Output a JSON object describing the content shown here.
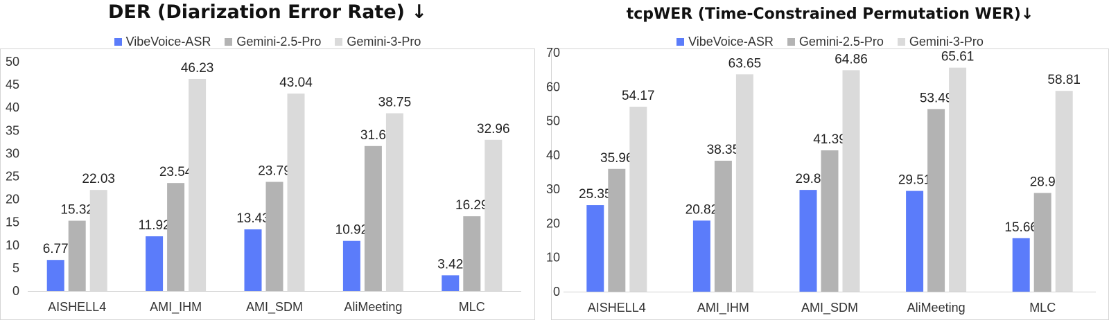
{
  "chart_data": [
    {
      "type": "bar",
      "title": "DER (Diarization Error Rate)",
      "title_arrow": "↓",
      "categories": [
        "AISHELL4",
        "AMI_IHM",
        "AMI_SDM",
        "AliMeeting",
        "MLC"
      ],
      "series": [
        {
          "name": "VibeVoice-ASR",
          "color": "#5b7cfa",
          "values": [
            6.77,
            11.92,
            13.43,
            10.92,
            3.42
          ]
        },
        {
          "name": "Gemini-2.5-Pro",
          "color": "#b3b3b3",
          "values": [
            15.32,
            23.54,
            23.79,
            31.6,
            16.29
          ]
        },
        {
          "name": "Gemini-3-Pro",
          "color": "#dadada",
          "values": [
            22.03,
            46.23,
            43.04,
            38.75,
            32.96
          ]
        }
      ],
      "ylim": [
        0,
        50
      ],
      "yticks": [
        0,
        5,
        10,
        15,
        20,
        25,
        30,
        35,
        40,
        45,
        50
      ],
      "xlabel": "",
      "ylabel": "",
      "grid": false,
      "legend": "top-center"
    },
    {
      "type": "bar",
      "title": "tcpWER (Time-Constrained Permutation WER)",
      "title_arrow": "↓",
      "categories": [
        "AISHELL4",
        "AMI_IHM",
        "AMI_SDM",
        "AliMeeting",
        "MLC"
      ],
      "series": [
        {
          "name": "VibeVoice-ASR",
          "color": "#5b7cfa",
          "values": [
            25.35,
            20.82,
            29.8,
            29.51,
            15.66
          ]
        },
        {
          "name": "Gemini-2.5-Pro",
          "color": "#b3b3b3",
          "values": [
            35.96,
            38.35,
            41.39,
            53.49,
            28.9
          ]
        },
        {
          "name": "Gemini-3-Pro",
          "color": "#dadada",
          "values": [
            54.17,
            63.65,
            64.86,
            65.61,
            58.81
          ]
        }
      ],
      "ylim": [
        0,
        70
      ],
      "yticks": [
        0,
        10,
        20,
        30,
        40,
        50,
        60,
        70
      ],
      "xlabel": "",
      "ylabel": "",
      "grid": false,
      "legend": "top-center"
    }
  ]
}
